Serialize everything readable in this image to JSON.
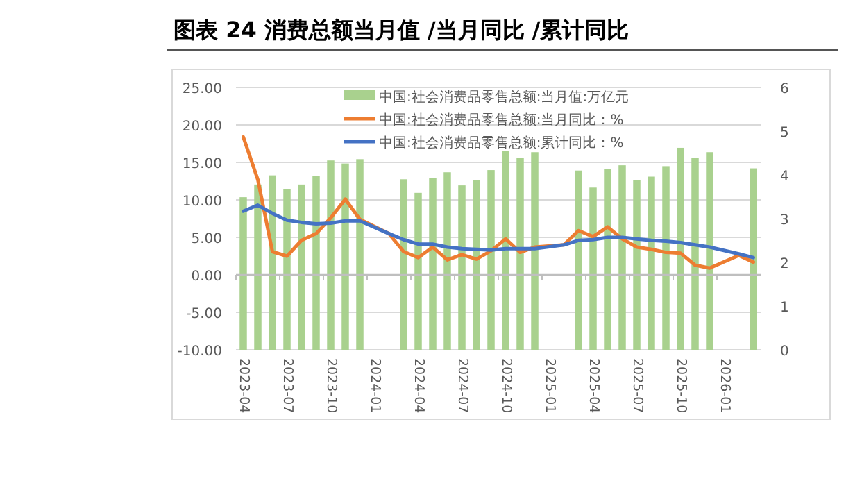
{
  "chart_data": {
    "type": "bar",
    "title": "图表 24 消费总额当月值 /当月同比 /累计同比",
    "categories": [
      "2023-04",
      null,
      null,
      "2023-07",
      null,
      null,
      "2023-10",
      null,
      null,
      "2024-01",
      null,
      null,
      "2024-04",
      null,
      null,
      "2024-07",
      null,
      null,
      "2024-10",
      null,
      null,
      "2025-01",
      null,
      null,
      "2025-04",
      null,
      null,
      "2025-07",
      null,
      null,
      "2025-10",
      null,
      null,
      "2026-01",
      null,
      null
    ],
    "series": [
      {
        "name": "中国:社会消费品零售总额:当月值:万亿元",
        "axis": "y2",
        "color": "#a9d18e",
        "values": [
          3.49,
          3.78,
          3.99,
          3.67,
          3.78,
          3.97,
          4.33,
          4.26,
          4.36,
          null,
          null,
          3.9,
          3.59,
          3.93,
          4.06,
          3.76,
          3.88,
          4.11,
          4.55,
          4.39,
          4.52,
          null,
          null,
          4.1,
          3.71,
          4.14,
          4.22,
          3.88,
          3.96,
          4.2,
          4.62,
          4.39,
          4.52,
          null,
          null,
          4.15
        ]
      },
      {
        "name": "中国:社会消费品零售总额:当月同比：%",
        "type": "line",
        "color": "#ed7d31",
        "values": [
          18.4,
          12.7,
          3.1,
          2.5,
          4.6,
          5.5,
          7.6,
          10.1,
          7.4,
          null,
          5.5,
          3.1,
          2.3,
          3.7,
          2.0,
          2.7,
          2.1,
          3.2,
          4.8,
          3.0,
          3.7,
          null,
          4.0,
          5.9,
          5.1,
          6.4,
          4.8,
          3.7,
          3.4,
          3.0,
          2.9,
          1.3,
          0.9,
          null,
          2.6,
          1.7
        ]
      },
      {
        "name": "中国:社会消费品零售总额:累计同比：%",
        "type": "line",
        "color": "#4472c4",
        "values": [
          8.5,
          9.3,
          8.2,
          7.3,
          7.0,
          6.8,
          6.9,
          7.2,
          7.2,
          null,
          5.5,
          4.7,
          4.1,
          4.1,
          3.7,
          3.5,
          3.4,
          3.3,
          3.5,
          3.5,
          3.5,
          null,
          4.0,
          4.6,
          4.7,
          5.0,
          5.0,
          4.8,
          4.6,
          4.5,
          4.3,
          4.0,
          3.7,
          null,
          2.8,
          2.3
        ]
      }
    ],
    "ylim": [
      -10,
      25
    ],
    "yticks": [
      {
        "value": -10,
        "label": "-10.00"
      },
      {
        "value": -5,
        "label": "-5.00"
      },
      {
        "value": 0,
        "label": "0.00"
      },
      {
        "value": 5,
        "label": "5.00"
      },
      {
        "value": 10,
        "label": "10.00"
      },
      {
        "value": 15,
        "label": "15.00"
      },
      {
        "value": 20,
        "label": "20.00"
      },
      {
        "value": 25,
        "label": "25.00"
      }
    ],
    "y2lim": [
      0,
      6
    ],
    "y2ticks": [
      0,
      1,
      2,
      3,
      4,
      5,
      6
    ],
    "grid": "y",
    "legend": "top",
    "marker": "none",
    "line_style": "solid"
  }
}
